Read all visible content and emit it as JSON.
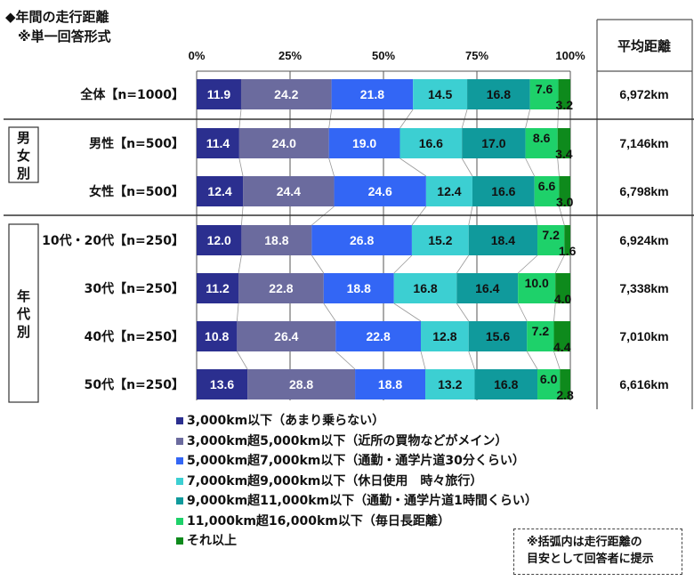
{
  "header": {
    "title": "◆年間の走行距離",
    "subtitle": "※単一回答形式"
  },
  "avg_header": "平均距離",
  "groups": [
    {
      "label": "男\n女\n別",
      "chars": [
        "男",
        "女",
        "別"
      ]
    },
    {
      "label": "年\n代\n別",
      "chars": [
        "年",
        "代",
        "別"
      ]
    }
  ],
  "note": {
    "line1": "※括弧内は走行距離の",
    "line2": "目安として回答者に提示"
  },
  "chart_data": {
    "type": "bar",
    "orientation": "horizontal",
    "stacked": true,
    "title": "◆年間の走行距離",
    "subtitle": "※単一回答形式",
    "xlabel": "",
    "ylabel": "",
    "xlim": [
      0,
      100
    ],
    "x_ticks": [
      "0%",
      "25%",
      "50%",
      "75%",
      "100%"
    ],
    "grid": true,
    "legend_position": "bottom",
    "categories": [
      "全体【n=1000】",
      "男性【n=500】",
      "女性【n=500】",
      "10代・20代【n=250】",
      "30代【n=250】",
      "40代【n=250】",
      "50代【n=250】"
    ],
    "series": [
      {
        "name": "3,000km以下（あまり乗らない）",
        "color": "#2b2f8f",
        "values": [
          11.9,
          11.4,
          12.4,
          12.0,
          11.2,
          10.8,
          13.6
        ]
      },
      {
        "name": "3,000km超5,000km以下（近所の買物などがメイン）",
        "color": "#6b6b9e",
        "values": [
          24.2,
          24.0,
          24.4,
          18.8,
          22.8,
          26.4,
          28.8
        ]
      },
      {
        "name": "5,000km超7,000km以下（通勤・通学片道30分くらい）",
        "color": "#3366f5",
        "values": [
          21.8,
          19.0,
          24.6,
          26.8,
          18.8,
          22.8,
          18.8
        ]
      },
      {
        "name": "7,000km超9,000km以下（休日使用　時々旅行）",
        "color": "#3ccfd2",
        "values": [
          14.5,
          16.6,
          12.4,
          15.2,
          16.8,
          12.8,
          13.2
        ]
      },
      {
        "name": "9,000km超11,000km以下（通勤・通学片道1時間くらい）",
        "color": "#109a9c",
        "values": [
          16.8,
          17.0,
          16.6,
          18.4,
          16.4,
          15.6,
          16.8
        ]
      },
      {
        "name": "11,000km超16,000km以下（毎日長距離）",
        "color": "#1ed16a",
        "values": [
          7.6,
          8.6,
          6.6,
          7.2,
          10.0,
          7.2,
          6.0
        ]
      },
      {
        "name": "それ以上",
        "color": "#0e8a1c",
        "values": [
          3.2,
          3.4,
          3.0,
          1.6,
          4.0,
          4.4,
          2.8
        ]
      }
    ],
    "label_colors": [
      "#ffffff",
      "#ffffff",
      "#ffffff",
      "#111111",
      "#111111",
      "#111111",
      "#111111"
    ],
    "average_distance": [
      "6,972km",
      "7,146km",
      "6,798km",
      "6,924km",
      "7,338km",
      "7,010km",
      "6,616km"
    ]
  }
}
